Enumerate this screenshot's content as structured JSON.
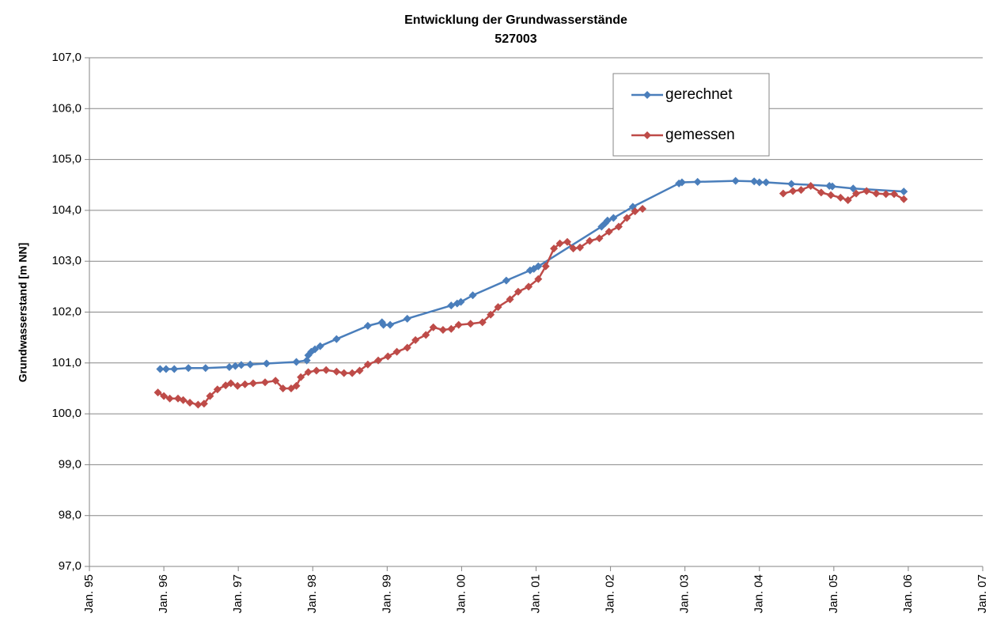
{
  "chart_data": {
    "type": "line",
    "title": "Entwicklung der Grundwasserstände",
    "subtitle": "527003",
    "y_label": "Grundwasserstand [m NN]",
    "xlim": [
      1995,
      2007
    ],
    "xticks": [
      {
        "value": 1995,
        "label": "Jan. 95"
      },
      {
        "value": 1996,
        "label": "Jan. 96"
      },
      {
        "value": 1997,
        "label": "Jan. 97"
      },
      {
        "value": 1998,
        "label": "Jan. 98"
      },
      {
        "value": 1999,
        "label": "Jan. 99"
      },
      {
        "value": 2000,
        "label": "Jan. 00"
      },
      {
        "value": 2001,
        "label": "Jan. 01"
      },
      {
        "value": 2002,
        "label": "Jan. 02"
      },
      {
        "value": 2003,
        "label": "Jan. 03"
      },
      {
        "value": 2004,
        "label": "Jan. 04"
      },
      {
        "value": 2005,
        "label": "Jan. 05"
      },
      {
        "value": 2006,
        "label": "Jan. 06"
      },
      {
        "value": 2007,
        "label": "Jan. 07"
      }
    ],
    "ylim": [
      97,
      107
    ],
    "yticks": [
      {
        "value": 97,
        "label": "97,0"
      },
      {
        "value": 98,
        "label": "98,0"
      },
      {
        "value": 99,
        "label": "99,0"
      },
      {
        "value": 100,
        "label": "100,0"
      },
      {
        "value": 101,
        "label": "101,0"
      },
      {
        "value": 102,
        "label": "102,0"
      },
      {
        "value": 103,
        "label": "103,0"
      },
      {
        "value": 104,
        "label": "104,0"
      },
      {
        "value": 105,
        "label": "105,0"
      },
      {
        "value": 106,
        "label": "106,0"
      },
      {
        "value": 107,
        "label": "107,0"
      }
    ],
    "grid": true,
    "legend": "top-right",
    "series": [
      {
        "name": "gerechnet",
        "color": "#4a7ebb",
        "x": [
          1995.95,
          1996.03,
          1996.14,
          1996.33,
          1996.56,
          1996.88,
          1996.96,
          1997.04,
          1997.16,
          1997.38,
          1997.78,
          1997.92,
          1997.94,
          1997.98,
          1998.03,
          1998.1,
          1998.32,
          1998.74,
          1998.93,
          1998.95,
          1999.04,
          1999.27,
          1999.86,
          1999.94,
          1999.99,
          2000.15,
          2000.6,
          2000.92,
          2000.97,
          2001.03,
          2001.88,
          2001.93,
          2001.96,
          2002.04,
          2002.3,
          2002.92,
          2002.96,
          2003.17,
          2003.68,
          2003.93,
          2004.0,
          2004.09,
          2004.43,
          2004.94,
          2004.98,
          2005.26,
          2005.94
        ],
        "values": [
          100.88,
          100.88,
          100.88,
          100.9,
          100.9,
          100.92,
          100.94,
          100.96,
          100.97,
          100.99,
          101.02,
          101.05,
          101.15,
          101.22,
          101.27,
          101.33,
          101.47,
          101.73,
          101.8,
          101.75,
          101.75,
          101.87,
          102.13,
          102.17,
          102.2,
          102.33,
          102.62,
          102.82,
          102.85,
          102.9,
          103.68,
          103.75,
          103.8,
          103.85,
          104.07,
          104.53,
          104.55,
          104.56,
          104.58,
          104.57,
          104.55,
          104.55,
          104.52,
          104.48,
          104.47,
          104.43,
          104.37
        ]
      },
      {
        "name": "gemessen",
        "color": "#be4b48",
        "x": [
          1995.92,
          1996.0,
          1996.08,
          1996.19,
          1996.26,
          1996.35,
          1996.46,
          1996.54,
          1996.62,
          1996.72,
          1996.83,
          1996.9,
          1996.99,
          1997.09,
          1997.2,
          1997.36,
          1997.5,
          1997.6,
          1997.71,
          1997.78,
          1997.84,
          1997.94,
          1998.05,
          1998.18,
          1998.32,
          1998.42,
          1998.53,
          1998.63,
          1998.74,
          1998.88,
          1999.01,
          1999.13,
          1999.27,
          1999.38,
          1999.52,
          1999.62,
          1999.75,
          1999.86,
          1999.96,
          2000.12,
          2000.28,
          2000.39,
          2000.49,
          2000.65,
          2000.76,
          2000.9,
          2001.03,
          2001.13,
          2001.24,
          2001.32,
          2001.42,
          2001.5,
          2001.59,
          2001.72,
          2001.85,
          2001.98,
          2002.11,
          2002.22,
          2002.33,
          2002.43,
          null,
          2004.32,
          2004.45,
          2004.56,
          2004.69,
          2004.83,
          2004.96,
          2005.09,
          2005.19,
          2005.3,
          2005.44,
          2005.57,
          2005.7,
          2005.81,
          2005.94
        ],
        "values": [
          100.42,
          100.35,
          100.3,
          100.3,
          100.27,
          100.22,
          100.18,
          100.2,
          100.35,
          100.48,
          100.56,
          100.6,
          100.55,
          100.58,
          100.6,
          100.62,
          100.65,
          100.5,
          100.5,
          100.55,
          100.72,
          100.82,
          100.85,
          100.86,
          100.83,
          100.8,
          100.8,
          100.85,
          100.97,
          101.05,
          101.13,
          101.22,
          101.3,
          101.45,
          101.55,
          101.7,
          101.65,
          101.67,
          101.75,
          101.77,
          101.8,
          101.95,
          102.1,
          102.25,
          102.4,
          102.5,
          102.65,
          102.9,
          103.25,
          103.35,
          103.38,
          103.25,
          103.27,
          103.4,
          103.45,
          103.58,
          103.68,
          103.85,
          103.98,
          104.03,
          null,
          104.33,
          104.38,
          104.4,
          104.48,
          104.35,
          104.3,
          104.25,
          104.2,
          104.33,
          104.38,
          104.33,
          104.32,
          104.32,
          104.22
        ]
      }
    ]
  }
}
